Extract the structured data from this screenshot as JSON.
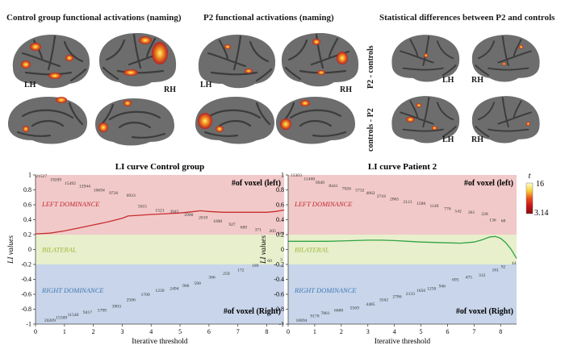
{
  "top_panels": [
    {
      "title": "Control group functional activations (naming)",
      "lh": "LH",
      "rh": "RH"
    },
    {
      "title": "P2 functional activations (naming)",
      "lh": "LH",
      "rh": "RH"
    },
    {
      "title": "Statistical differences between P2 and controls",
      "lh": "LH",
      "rh": "RH"
    }
  ],
  "contrast_labels": [
    "P2 - controls",
    "controls - P2"
  ],
  "colorbar": {
    "t_label": "t",
    "max": "16",
    "min": "3.14",
    "colors": [
      "#ffffd0",
      "#f6d23a",
      "#ea4f1a",
      "#c5141b",
      "#8a0d0d"
    ]
  },
  "chart_data": [
    {
      "type": "line",
      "title": "LI curve Control group",
      "xlabel": "Iterative threshold",
      "ylabel": "LI values",
      "xlim": [
        0,
        8.6
      ],
      "ylim": [
        -1,
        1
      ],
      "xticks": [
        "0",
        "1",
        "2",
        "3",
        "4",
        "5",
        "6",
        "7",
        "8"
      ],
      "yticks": [
        "1",
        "0.8",
        "0.6",
        "0.4",
        "0.2",
        "0",
        "-0.2",
        "-0.4",
        "-0.6",
        "-0.8",
        "-1"
      ],
      "regions": {
        "left": "LEFT DOMINANCE",
        "bilateral": "BILATERAL",
        "right": "RIGHT DOMINANCE",
        "left_color": "#f2c9c9",
        "bilateral_color": "#e8efcc",
        "right_color": "#c8d5ea",
        "left_label_color": "#c0282d",
        "bilateral_label_color": "#9bb83a",
        "right_label_color": "#3f78b7"
      },
      "voxel_left_title": "#of voxel (left)",
      "voxel_right_title": "#of voxel (Right)",
      "line_color": "#c62e2e",
      "series": [
        {
          "x": [
            0,
            0.5,
            1,
            1.5,
            2,
            2.5,
            3,
            3.2,
            3.6,
            4,
            4.5,
            5,
            5.5,
            5.7,
            6,
            6.5,
            7,
            7.5,
            8,
            8.3,
            8.6
          ],
          "values": [
            0.21,
            0.22,
            0.25,
            0.29,
            0.33,
            0.37,
            0.42,
            0.45,
            0.46,
            0.47,
            0.48,
            0.49,
            0.51,
            0.52,
            0.51,
            0.5,
            0.5,
            0.5,
            0.5,
            0.51,
            0.53
          ]
        }
      ],
      "left_counts": [
        {
          "x": 0.2,
          "y": 0.97,
          "label": "21527"
        },
        {
          "x": 0.7,
          "y": 0.92,
          "label": "19209"
        },
        {
          "x": 1.2,
          "y": 0.87,
          "label": "15492"
        },
        {
          "x": 1.7,
          "y": 0.83,
          "label": "12944"
        },
        {
          "x": 2.2,
          "y": 0.78,
          "label": "10694"
        },
        {
          "x": 2.7,
          "y": 0.74,
          "label": "9726"
        },
        {
          "x": 3.3,
          "y": 0.71,
          "label": "6933"
        },
        {
          "x": 3.7,
          "y": 0.56,
          "label": "5015"
        },
        {
          "x": 4.3,
          "y": 0.51,
          "label": "1521"
        },
        {
          "x": 4.8,
          "y": 0.49,
          "label": "3945"
        },
        {
          "x": 5.3,
          "y": 0.45,
          "label": "2900"
        },
        {
          "x": 5.8,
          "y": 0.41,
          "label": "2019"
        },
        {
          "x": 6.3,
          "y": 0.36,
          "label": "1090"
        },
        {
          "x": 6.8,
          "y": 0.32,
          "label": "927"
        },
        {
          "x": 7.2,
          "y": 0.28,
          "label": "689"
        },
        {
          "x": 7.7,
          "y": 0.25,
          "label": "371"
        },
        {
          "x": 8.2,
          "y": 0.23,
          "label": "205"
        },
        {
          "x": 8.5,
          "y": 0.2,
          "label": "101"
        }
      ],
      "right_counts": [
        {
          "x": 0.5,
          "y": -0.97,
          "label": "20209"
        },
        {
          "x": 0.9,
          "y": -0.93,
          "label": "15509"
        },
        {
          "x": 1.3,
          "y": -0.89,
          "label": "11540"
        },
        {
          "x": 1.8,
          "y": -0.86,
          "label": "9417"
        },
        {
          "x": 2.3,
          "y": -0.83,
          "label": "5799"
        },
        {
          "x": 2.8,
          "y": -0.78,
          "label": "3903"
        },
        {
          "x": 3.3,
          "y": -0.69,
          "label": "2506"
        },
        {
          "x": 3.8,
          "y": -0.62,
          "label": "1709"
        },
        {
          "x": 4.3,
          "y": -0.57,
          "label": "1239"
        },
        {
          "x": 4.8,
          "y": -0.54,
          "label": "2494"
        },
        {
          "x": 5.2,
          "y": -0.5,
          "label": "966"
        },
        {
          "x": 5.6,
          "y": -0.47,
          "label": "590"
        },
        {
          "x": 6.1,
          "y": -0.39,
          "label": "366"
        },
        {
          "x": 6.6,
          "y": -0.34,
          "label": "259"
        },
        {
          "x": 7.1,
          "y": -0.29,
          "label": "172"
        },
        {
          "x": 7.6,
          "y": -0.23,
          "label": "109"
        },
        {
          "x": 8.1,
          "y": -0.17,
          "label": "60"
        },
        {
          "x": 8.5,
          "y": -0.15,
          "label": "3"
        }
      ]
    },
    {
      "type": "line",
      "title": "LI curve Patient 2",
      "xlabel": "Iterative threshold",
      "ylabel": "LI values",
      "xlim": [
        0,
        8.6
      ],
      "ylim": [
        -1,
        1
      ],
      "xticks": [
        "0",
        "1",
        "2",
        "3",
        "4",
        "5",
        "6",
        "7",
        "8"
      ],
      "yticks": [
        "1",
        "0.8",
        "0.6",
        "0.4",
        "0.2",
        "0",
        "-0.2",
        "-0.4",
        "-0.6",
        "-0.8",
        "-1"
      ],
      "regions": {
        "left": "LEFT DOMINANCE",
        "bilateral": "BILATERAL",
        "right": "RIGHT DOMINANCE",
        "left_color": "#f2c9c9",
        "bilateral_color": "#e8efcc",
        "right_color": "#c8d5ea",
        "left_label_color": "#c0282d",
        "bilateral_label_color": "#9bb83a",
        "right_label_color": "#3f78b7"
      },
      "voxel_left_title": "#of voxel (left)",
      "voxel_right_title": "#of voxel (Right)",
      "line_color": "#2fa443",
      "series": [
        {
          "x": [
            0,
            0.5,
            1,
            1.5,
            2,
            2.5,
            3,
            3.5,
            4,
            4.5,
            5,
            5.5,
            6,
            6.5,
            7,
            7.3,
            7.6,
            7.8,
            8,
            8.2,
            8.4,
            8.6
          ],
          "values": [
            0.11,
            0.11,
            0.11,
            0.11,
            0.115,
            0.12,
            0.125,
            0.125,
            0.12,
            0.11,
            0.1,
            0.095,
            0.09,
            0.085,
            0.1,
            0.13,
            0.17,
            0.175,
            0.15,
            0.09,
            0.0,
            -0.12
          ]
        }
      ],
      "left_counts": [
        {
          "x": 0.3,
          "y": 0.98,
          "label": "13303"
        },
        {
          "x": 0.8,
          "y": 0.93,
          "label": "11460"
        },
        {
          "x": 1.2,
          "y": 0.88,
          "label": "9949"
        },
        {
          "x": 1.7,
          "y": 0.84,
          "label": "8441"
        },
        {
          "x": 2.2,
          "y": 0.8,
          "label": "7026"
        },
        {
          "x": 2.7,
          "y": 0.78,
          "label": "5732"
        },
        {
          "x": 3.1,
          "y": 0.74,
          "label": "4662"
        },
        {
          "x": 3.5,
          "y": 0.7,
          "label": "3718"
        },
        {
          "x": 4.0,
          "y": 0.66,
          "label": "2865"
        },
        {
          "x": 4.5,
          "y": 0.62,
          "label": "2121"
        },
        {
          "x": 5.0,
          "y": 0.6,
          "label": "1588"
        },
        {
          "x": 5.5,
          "y": 0.57,
          "label": "1149"
        },
        {
          "x": 6.0,
          "y": 0.53,
          "label": "776"
        },
        {
          "x": 6.4,
          "y": 0.5,
          "label": "542"
        },
        {
          "x": 6.9,
          "y": 0.48,
          "label": "361"
        },
        {
          "x": 7.4,
          "y": 0.46,
          "label": "228"
        },
        {
          "x": 7.7,
          "y": 0.38,
          "label": "136"
        },
        {
          "x": 8.1,
          "y": 0.37,
          "label": "68"
        }
      ],
      "right_counts": [
        {
          "x": 0.5,
          "y": -0.97,
          "label": "10894"
        },
        {
          "x": 1.0,
          "y": -0.91,
          "label": "9170"
        },
        {
          "x": 1.4,
          "y": -0.87,
          "label": "7861"
        },
        {
          "x": 1.9,
          "y": -0.83,
          "label": "6688"
        },
        {
          "x": 2.5,
          "y": -0.8,
          "label": "5569"
        },
        {
          "x": 3.1,
          "y": -0.75,
          "label": "4485"
        },
        {
          "x": 3.6,
          "y": -0.69,
          "label": "3562"
        },
        {
          "x": 4.1,
          "y": -0.65,
          "label": "2786"
        },
        {
          "x": 4.6,
          "y": -0.61,
          "label": "2133"
        },
        {
          "x": 5.0,
          "y": -0.57,
          "label": "1656"
        },
        {
          "x": 5.4,
          "y": -0.54,
          "label": "1250"
        },
        {
          "x": 5.8,
          "y": -0.51,
          "label": "946"
        },
        {
          "x": 6.3,
          "y": -0.42,
          "label": "695"
        },
        {
          "x": 6.8,
          "y": -0.39,
          "label": "475"
        },
        {
          "x": 7.3,
          "y": -0.36,
          "label": "312"
        },
        {
          "x": 7.8,
          "y": -0.29,
          "label": "181"
        },
        {
          "x": 8.1,
          "y": -0.25,
          "label": "92"
        },
        {
          "x": 8.5,
          "y": -0.2,
          "label": "44"
        }
      ]
    }
  ]
}
